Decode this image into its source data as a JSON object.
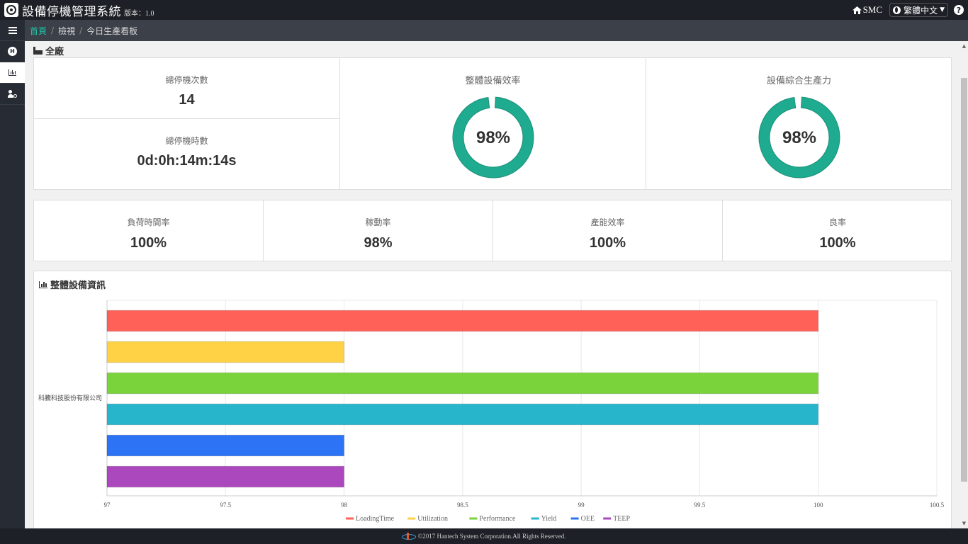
{
  "header": {
    "title": "設備停機管理系統",
    "version": "版本：1.0",
    "home_label": "SMC",
    "language": "繁體中文"
  },
  "breadcrumb": {
    "home": "首頁",
    "level2": "檢視",
    "current": "今日生產看板"
  },
  "section": {
    "title": "全廠"
  },
  "stops": {
    "count_label": "總停機次數",
    "count_value": "14",
    "time_label": "總停機時數",
    "time_value": "0d:0h:14m:14s"
  },
  "donuts": [
    {
      "label": "整體設備效率",
      "value": 98,
      "text": "98%"
    },
    {
      "label": "設備綜合生產力",
      "value": 98,
      "text": "98%"
    }
  ],
  "kpis": [
    {
      "label": "負荷時間率",
      "value": "100%"
    },
    {
      "label": "稼動率",
      "value": "98%"
    },
    {
      "label": "產能效率",
      "value": "100%"
    },
    {
      "label": "良率",
      "value": "100%"
    }
  ],
  "chart_section": {
    "title": "整體設備資訊"
  },
  "chart_data": {
    "type": "bar",
    "orientation": "horizontal",
    "categories": [
      "科騰科技股份有限公司"
    ],
    "series": [
      {
        "name": "LoadingTime",
        "values": [
          100
        ],
        "color": "#ff6158"
      },
      {
        "name": "Utilization",
        "values": [
          98
        ],
        "color": "#ffd144"
      },
      {
        "name": "Performance",
        "values": [
          100
        ],
        "color": "#7ad33a"
      },
      {
        "name": "Yield",
        "values": [
          100
        ],
        "color": "#27b5cc"
      },
      {
        "name": "OEE",
        "values": [
          98
        ],
        "color": "#2d73f5"
      },
      {
        "name": "TEEP",
        "values": [
          98
        ],
        "color": "#ab48be"
      }
    ],
    "xlim": [
      97,
      100.5
    ],
    "xticks": [
      "97",
      "97.5",
      "98",
      "98.5",
      "99",
      "99.5",
      "100",
      "100.5"
    ],
    "grid": true,
    "legend": "bottom"
  },
  "colors": {
    "accent": "#1ec6a8",
    "donut": "#1fab8f",
    "topbar": "#1d2026"
  },
  "footer": {
    "text": "©2017 Hantech System Corporation.All Rights Reserved."
  }
}
